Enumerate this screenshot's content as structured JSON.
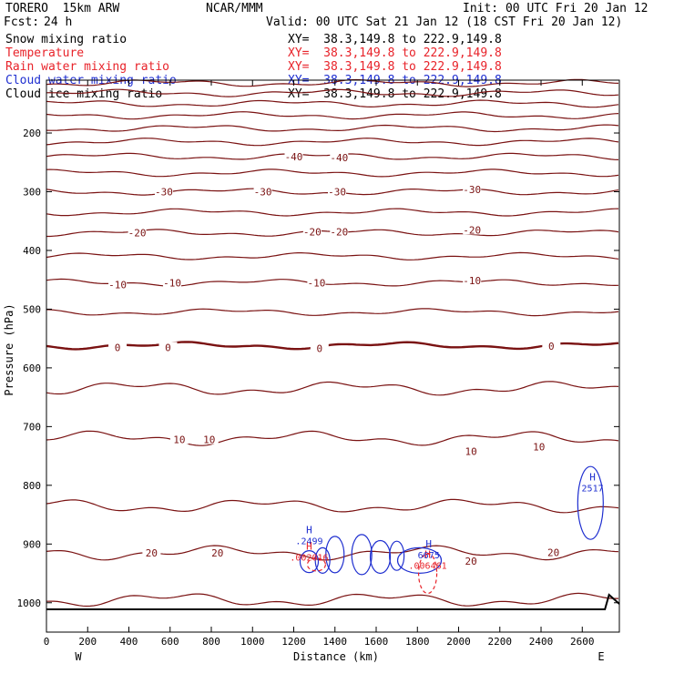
{
  "header": {
    "model": "TORERO  15km ARW",
    "org": "NCAR/MMM",
    "init": "Init: 00 UTC Fri 20 Jan 12",
    "fcst_label": "Fcst:",
    "fcst_value": "24 h",
    "valid": "Valid: 00 UTC Sat 21 Jan 12 (18 CST Fri 20 Jan 12)"
  },
  "fields": [
    {
      "name": "Snow mixing ratio",
      "xy": "XY=  38.3,149.8 to 222.9,149.8",
      "color": "#000000"
    },
    {
      "name": "Temperature",
      "xy": "XY=  38.3,149.8 to 222.9,149.8",
      "color": "#e8232a"
    },
    {
      "name": "Rain water mixing ratio",
      "xy": "XY=  38.3,149.8 to 222.9,149.8",
      "color": "#e8232a"
    },
    {
      "name": "Cloud water mixing ratio",
      "xy": "XY=  38.3,149.8 to 222.9,149.8",
      "color": "#1f2fd0"
    },
    {
      "name": "Cloud ice mixing ratio",
      "xy": "XY=  38.3,149.8 to 222.9,149.8",
      "color": "#000000"
    }
  ],
  "colors": {
    "temperature_contour": "#7a1212",
    "cloud_water": "#1f2fd0",
    "rain_water": "#e8232a",
    "terrain": "#000000"
  },
  "chart_data": {
    "type": "line",
    "xlabel": "Distance (km)",
    "ylabel": "Pressure (hPa)",
    "xlim": [
      0,
      2780
    ],
    "ylim": [
      1050,
      110
    ],
    "x_ticks": [
      0,
      200,
      400,
      600,
      800,
      1000,
      1200,
      1400,
      1600,
      1800,
      2000,
      2200,
      2400,
      2600
    ],
    "y_ticks": [
      200,
      300,
      400,
      500,
      600,
      700,
      800,
      900,
      1000
    ],
    "x_end_labels": {
      "left": "W",
      "right": "E"
    },
    "temperature_isotherms": [
      {
        "pressure": 115,
        "value": null
      },
      {
        "pressure": 132,
        "value": null
      },
      {
        "pressure": 150,
        "value": null
      },
      {
        "pressure": 170,
        "value": null
      },
      {
        "pressure": 192,
        "value": null
      },
      {
        "pressure": 215,
        "value": null
      },
      {
        "pressure": 240,
        "value": -40
      },
      {
        "pressure": 268,
        "value": null
      },
      {
        "pressure": 300,
        "value": -30
      },
      {
        "pressure": 335,
        "value": null
      },
      {
        "pressure": 370,
        "value": -20
      },
      {
        "pressure": 410,
        "value": null
      },
      {
        "pressure": 455,
        "value": -10
      },
      {
        "pressure": 505,
        "value": null
      },
      {
        "pressure": 562,
        "value": 0
      },
      {
        "pressure": 635,
        "value": null
      },
      {
        "pressure": 720,
        "value": 10
      },
      {
        "pressure": 835,
        "value": null
      },
      {
        "pressure": 915,
        "value": 20
      },
      {
        "pressure": 995,
        "value": null
      }
    ],
    "contour_labels": [
      {
        "text": "-40",
        "x": 1200,
        "p": 240
      },
      {
        "text": "-40",
        "x": 1420,
        "p": 242
      },
      {
        "text": "-30",
        "x": 570,
        "p": 300
      },
      {
        "text": "-30",
        "x": 1050,
        "p": 300
      },
      {
        "text": "-30",
        "x": 1410,
        "p": 300
      },
      {
        "text": "-30",
        "x": 2065,
        "p": 296
      },
      {
        "text": "-20",
        "x": 440,
        "p": 370
      },
      {
        "text": "-20",
        "x": 1290,
        "p": 368
      },
      {
        "text": "-20",
        "x": 1420,
        "p": 368
      },
      {
        "text": "-20",
        "x": 2065,
        "p": 365
      },
      {
        "text": "-10",
        "x": 345,
        "p": 458
      },
      {
        "text": "-10",
        "x": 610,
        "p": 455
      },
      {
        "text": "-10",
        "x": 1310,
        "p": 455
      },
      {
        "text": "-10",
        "x": 2065,
        "p": 451
      },
      {
        "text": "0",
        "x": 345,
        "p": 565
      },
      {
        "text": "0",
        "x": 590,
        "p": 565
      },
      {
        "text": "0",
        "x": 1325,
        "p": 567
      },
      {
        "text": "0",
        "x": 2450,
        "p": 563
      },
      {
        "text": "10",
        "x": 645,
        "p": 722
      },
      {
        "text": "10",
        "x": 790,
        "p": 722
      },
      {
        "text": "10",
        "x": 2060,
        "p": 742
      },
      {
        "text": "10",
        "x": 2390,
        "p": 734
      },
      {
        "text": "20",
        "x": 510,
        "p": 915
      },
      {
        "text": "20",
        "x": 830,
        "p": 915
      },
      {
        "text": "20",
        "x": 2060,
        "p": 929
      },
      {
        "text": "20",
        "x": 2460,
        "p": 914
      }
    ],
    "cloud_water_maxima": [
      {
        "label": "H",
        "value": ".2499",
        "x": 1275,
        "p": 894
      },
      {
        "label": "H",
        "value": "2517",
        "x": 2650,
        "p": 804
      }
    ],
    "rain_water_maxima": [
      {
        "label": "H",
        "value": ".002016",
        "x": 1275,
        "p": 922
      },
      {
        "label": "H",
        "value": ".006461",
        "x": 1850,
        "p": 936
      }
    ],
    "overlapping_maximum": {
      "label": "H",
      "value": "6675",
      "x": 1855,
      "p": 918
    },
    "grid": false,
    "legend": "top-left"
  }
}
